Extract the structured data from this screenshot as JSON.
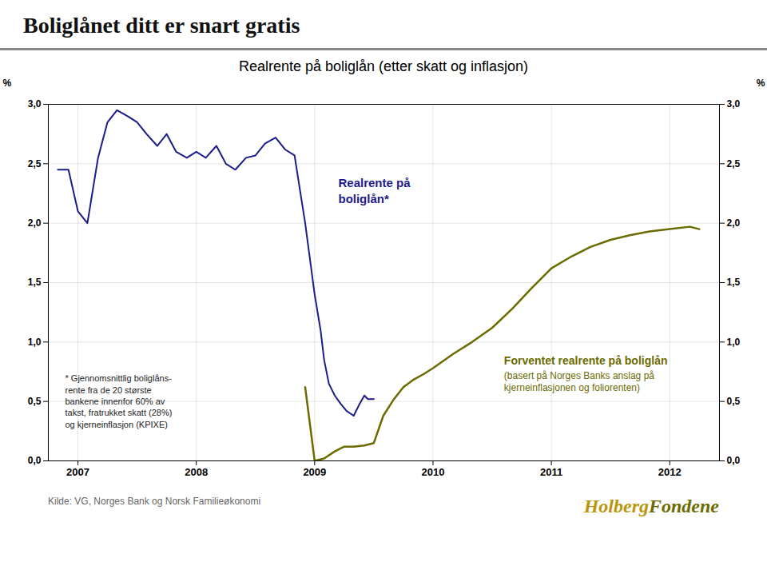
{
  "chart_data": {
    "type": "line",
    "title": "Boliglånet ditt er snart gratis",
    "subtitle": "Realrente på boliglån (etter skatt og inflasjon)",
    "ylabel": "%",
    "y2label": "%",
    "xlim": [
      2006.75,
      2012.42
    ],
    "xticks": [
      2007,
      2008,
      2009,
      2010,
      2011,
      2012
    ],
    "ylim": [
      0.0,
      3.0
    ],
    "yticks": [
      {
        "value": 0.0,
        "label": "0,0"
      },
      {
        "value": 0.5,
        "label": "0,5"
      },
      {
        "value": 1.0,
        "label": "1,0"
      },
      {
        "value": 1.5,
        "label": "1,5"
      },
      {
        "value": 2.0,
        "label": "2,0"
      },
      {
        "value": 2.5,
        "label": "2,5"
      },
      {
        "value": 3.0,
        "label": "3,0"
      }
    ],
    "y2lim": [
      0.0,
      3.0
    ],
    "y2ticks": [
      {
        "value": 0.0,
        "label": "0,0"
      },
      {
        "value": 0.5,
        "label": "0,5"
      },
      {
        "value": 1.0,
        "label": "1,0"
      },
      {
        "value": 1.5,
        "label": "1,5"
      },
      {
        "value": 2.0,
        "label": "2,0"
      },
      {
        "value": 2.5,
        "label": "2,5"
      },
      {
        "value": 3.0,
        "label": "3,0"
      }
    ],
    "grid": true,
    "series": [
      {
        "color": "#1c1c8a",
        "x": [
          2006.83,
          2006.92,
          2007.0,
          2007.08,
          2007.17,
          2007.25,
          2007.33,
          2007.42,
          2007.5,
          2007.58,
          2007.67,
          2007.75,
          2007.83,
          2007.92,
          2008.0,
          2008.08,
          2008.17,
          2008.25,
          2008.33,
          2008.42,
          2008.5,
          2008.58,
          2008.67,
          2008.75,
          2008.83,
          2008.92,
          2009.0,
          2009.05,
          2009.08,
          2009.12,
          2009.17,
          2009.22,
          2009.27,
          2009.33
        ],
        "values": [
          2.45,
          2.45,
          2.1,
          2.0,
          2.55,
          2.85,
          2.95,
          2.9,
          2.85,
          2.75,
          2.65,
          2.75,
          2.6,
          2.55,
          2.6,
          2.55,
          2.65,
          2.5,
          2.45,
          2.55,
          2.57,
          2.67,
          2.72,
          2.62,
          2.57,
          2.0,
          1.4,
          1.1,
          0.85,
          0.65,
          0.55,
          0.48,
          0.42,
          0.38
        ]
      },
      {
        "color": "#1c1c8a",
        "x": [
          2009.33,
          2009.38,
          2009.42,
          2009.45,
          2009.5
        ],
        "values": [
          0.38,
          0.48,
          0.55,
          0.52,
          0.52
        ]
      },
      {
        "color": "#6b6b00",
        "x": [
          2008.92,
          2009.0,
          2009.08,
          2009.17,
          2009.25,
          2009.33,
          2009.42,
          2009.5,
          2009.58,
          2009.67,
          2009.75,
          2009.83,
          2009.92,
          2010.0,
          2010.17,
          2010.33,
          2010.5,
          2010.67,
          2010.83,
          2011.0,
          2011.17,
          2011.33,
          2011.5,
          2011.67,
          2011.83,
          2012.0,
          2012.17,
          2012.25
        ],
        "values": [
          0.62,
          0.0,
          0.02,
          0.08,
          0.12,
          0.12,
          0.13,
          0.15,
          0.38,
          0.52,
          0.62,
          0.68,
          0.73,
          0.78,
          0.9,
          1.0,
          1.12,
          1.28,
          1.45,
          1.62,
          1.72,
          1.8,
          1.86,
          1.9,
          1.93,
          1.95,
          1.97,
          1.95
        ]
      }
    ],
    "annotations": [
      {
        "text": "Realrente på",
        "color": "#1c1c8a"
      },
      {
        "text": "boliglån*",
        "color": "#1c1c8a"
      },
      {
        "text": "Forventet realrente på boliglån",
        "color": "#6b6b00"
      },
      {
        "text": "(basert på Norges Banks anslag på",
        "color": "#6b6b00"
      },
      {
        "text": "kjerneinflasjonen og foliorenten)",
        "color": "#6b6b00"
      },
      {
        "text": "* Gjennomsnittlig boliglåns-\nrente fra de 20 største\nbankene innenfor 60% av\ntakst, fratrukket skatt (28%)\nog kjerneinflasjon (KPIXE)",
        "color": "#222222"
      }
    ],
    "source": "Kilde: VG, Norges Bank og Norsk Familieøkonomi",
    "logo": [
      {
        "text": "Holberg",
        "color": "#b8960c"
      },
      {
        "text": "Fondene",
        "color": "#6b6b00"
      }
    ]
  }
}
